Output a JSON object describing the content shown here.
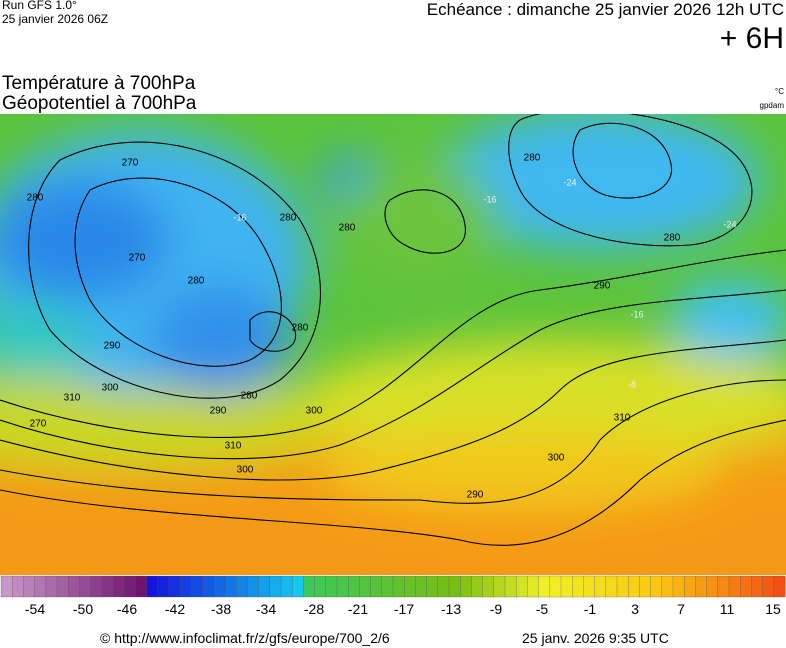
{
  "header": {
    "model": "Run GFS 1.0°",
    "run": "25 janvier 2026 06Z",
    "valid": "Echéance : dimanche 25 janvier 2026 12h UTC",
    "lead": "+ 6H"
  },
  "titles": {
    "temperature": "Température à 700hPa",
    "geopotential": "Géopotentiel à 700hPa",
    "temp_unit": "°C",
    "geo_unit": "gpdam"
  },
  "map": {
    "contour_labels": [
      "270",
      "280",
      "270",
      "280",
      "280",
      "280",
      "280",
      "280",
      "290",
      "280",
      "290",
      "300",
      "310",
      "270",
      "280",
      "290",
      "300",
      "310",
      "300",
      "290",
      "300",
      "310"
    ],
    "isotherm_labels": [
      "-24",
      "-16",
      "-16",
      "-24",
      "-16",
      "-8"
    ]
  },
  "colorbar": {
    "labels": [
      "-54",
      "-50",
      "-46",
      "-42",
      "-38",
      "-34",
      "-28",
      "-21",
      "-17",
      "-13",
      "-9",
      "-5",
      "-1",
      "3",
      "7",
      "11",
      "15"
    ]
  },
  "footer": {
    "source": "© http://www.infoclimat.fr/z/gfs/europe/700_2/6",
    "generated": "25 janv. 2026  9:35 UTC"
  }
}
